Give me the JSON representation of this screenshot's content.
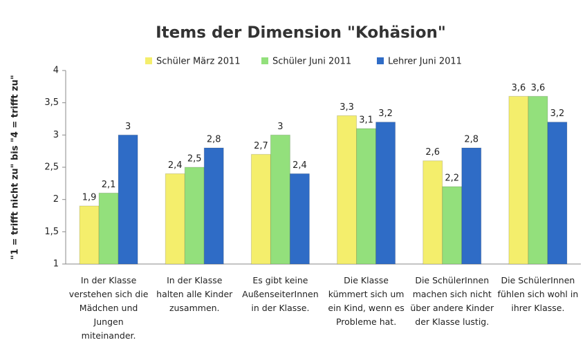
{
  "chart_data": {
    "type": "bar",
    "title": "Items der Dimension \"Kohäsion\"",
    "ylabel": "\"1 = trifft nicht zu\" bis \"4 = trifft zu\"",
    "categories": [
      "In der Klasse verstehen sich die Mädchen und Jungen miteinander.",
      "In der Klasse halten alle Kinder zusammen.",
      "Es gibt keine AußenseiterInnen in der Klasse.",
      "Die Klasse kümmert sich um ein Kind, wenn es Probleme hat.",
      "Die SchülerInnen machen sich nicht über andere Kinder der Klasse lustig.",
      "Die SchülerInnen fühlen sich wohl in ihrer Klasse."
    ],
    "series": [
      {
        "name": "Schüler März 2011",
        "color": "#f4ee6c",
        "values": [
          1.9,
          2.4,
          2.7,
          3.3,
          2.6,
          3.6
        ],
        "value_labels": [
          "1,9",
          "2,4",
          "2,7",
          "3,3",
          "2,6",
          "3,6"
        ]
      },
      {
        "name": "Schüler Juni 2011",
        "color": "#93e07c",
        "values": [
          2.1,
          2.5,
          3,
          3.1,
          2.2,
          3.6
        ],
        "value_labels": [
          "2,1",
          "2,5",
          "3",
          "3,1",
          "2,2",
          "3,6"
        ]
      },
      {
        "name": "Lehrer Juni 2011",
        "color": "#2f6cc6",
        "values": [
          3,
          2.8,
          2.4,
          3.2,
          2.8,
          3.2
        ],
        "value_labels": [
          "3",
          "2,8",
          "2,4",
          "3,2",
          "2,8",
          "3,2"
        ]
      }
    ],
    "ylim": [
      1,
      4
    ],
    "yticks": [
      1,
      {
        "value": 1.5,
        "label": "1,5"
      },
      2,
      {
        "value": 2.5,
        "label": "2,5"
      },
      3,
      {
        "value": 3.5,
        "label": "3,5"
      },
      4
    ],
    "grid": false,
    "legend": "top"
  }
}
